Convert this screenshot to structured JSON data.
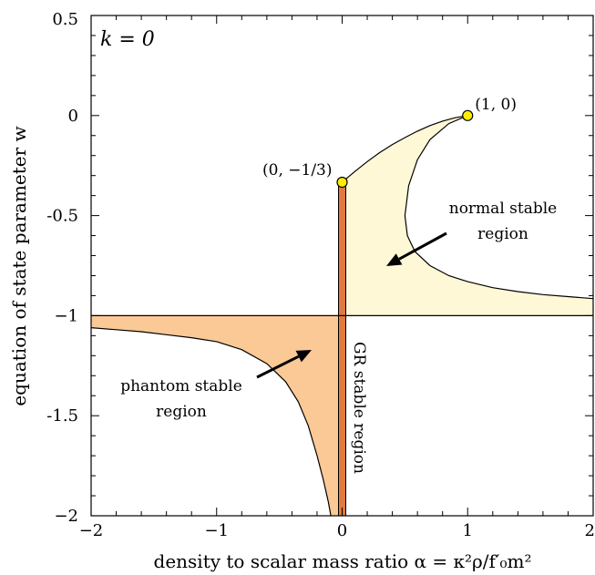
{
  "chart_data": {
    "type": "area",
    "panel_label": "k = 0",
    "xlabel": "density to scalar mass ratio α = κ²ρ/f′₀m²",
    "ylabel": "equation of state parameter w",
    "xlim": [
      -2,
      2
    ],
    "ylim": [
      -2,
      0.5
    ],
    "x_ticks": [
      -2,
      -1,
      0,
      1,
      2
    ],
    "x_tick_labels": [
      "−2",
      "−1",
      "0",
      "1",
      "2"
    ],
    "y_ticks": [
      0.5,
      0,
      -0.5,
      -1,
      -1.5,
      -2
    ],
    "y_tick_labels": [
      "0.5",
      "0",
      "-0.5",
      "−1",
      "-1.5",
      "−2"
    ],
    "grid": false,
    "regions": [
      {
        "label": "normal stable region",
        "label_lines": [
          "normal stable",
          "region"
        ],
        "color": "#FFF8D6"
      },
      {
        "label": "phantom stable region",
        "label_lines": [
          "phantom stable",
          "region"
        ],
        "color": "#FBC996"
      },
      {
        "label": "GR stable region",
        "color": "#E07A3E"
      }
    ],
    "points": [
      {
        "label": "(1, 0)",
        "x": 1,
        "y": 0,
        "color": "#FFEE00"
      },
      {
        "label": "(0, −1/3)",
        "x": 0,
        "y": -0.3333,
        "color": "#FFEE00"
      }
    ],
    "curves": {
      "normal_upper": {
        "x": [
          0,
          0.1,
          0.2,
          0.3,
          0.4,
          0.5,
          0.6,
          0.7,
          0.8,
          0.9,
          1.0
        ],
        "y": [
          -0.333,
          -0.28,
          -0.23,
          -0.185,
          -0.145,
          -0.11,
          -0.078,
          -0.05,
          -0.028,
          -0.011,
          0
        ]
      },
      "normal_lower": {
        "x": [
          1.0,
          0.85,
          0.7,
          0.6,
          0.53,
          0.5,
          0.52,
          0.58,
          0.7,
          0.85,
          1.0,
          1.2,
          1.4,
          1.6,
          1.8,
          2.0
        ],
        "y": [
          0,
          -0.04,
          -0.12,
          -0.22,
          -0.35,
          -0.5,
          -0.6,
          -0.68,
          -0.75,
          -0.8,
          -0.83,
          -0.86,
          -0.88,
          -0.895,
          -0.905,
          -0.915
        ]
      },
      "phantom": {
        "x": [
          -2.0,
          -1.8,
          -1.6,
          -1.4,
          -1.2,
          -1.0,
          -0.8,
          -0.6,
          -0.45,
          -0.35,
          -0.27,
          -0.2,
          -0.15,
          -0.11,
          -0.09
        ],
        "y": [
          -1.06,
          -1.07,
          -1.08,
          -1.095,
          -1.11,
          -1.13,
          -1.17,
          -1.24,
          -1.33,
          -1.43,
          -1.55,
          -1.7,
          -1.82,
          -1.93,
          -2.0
        ]
      }
    }
  }
}
